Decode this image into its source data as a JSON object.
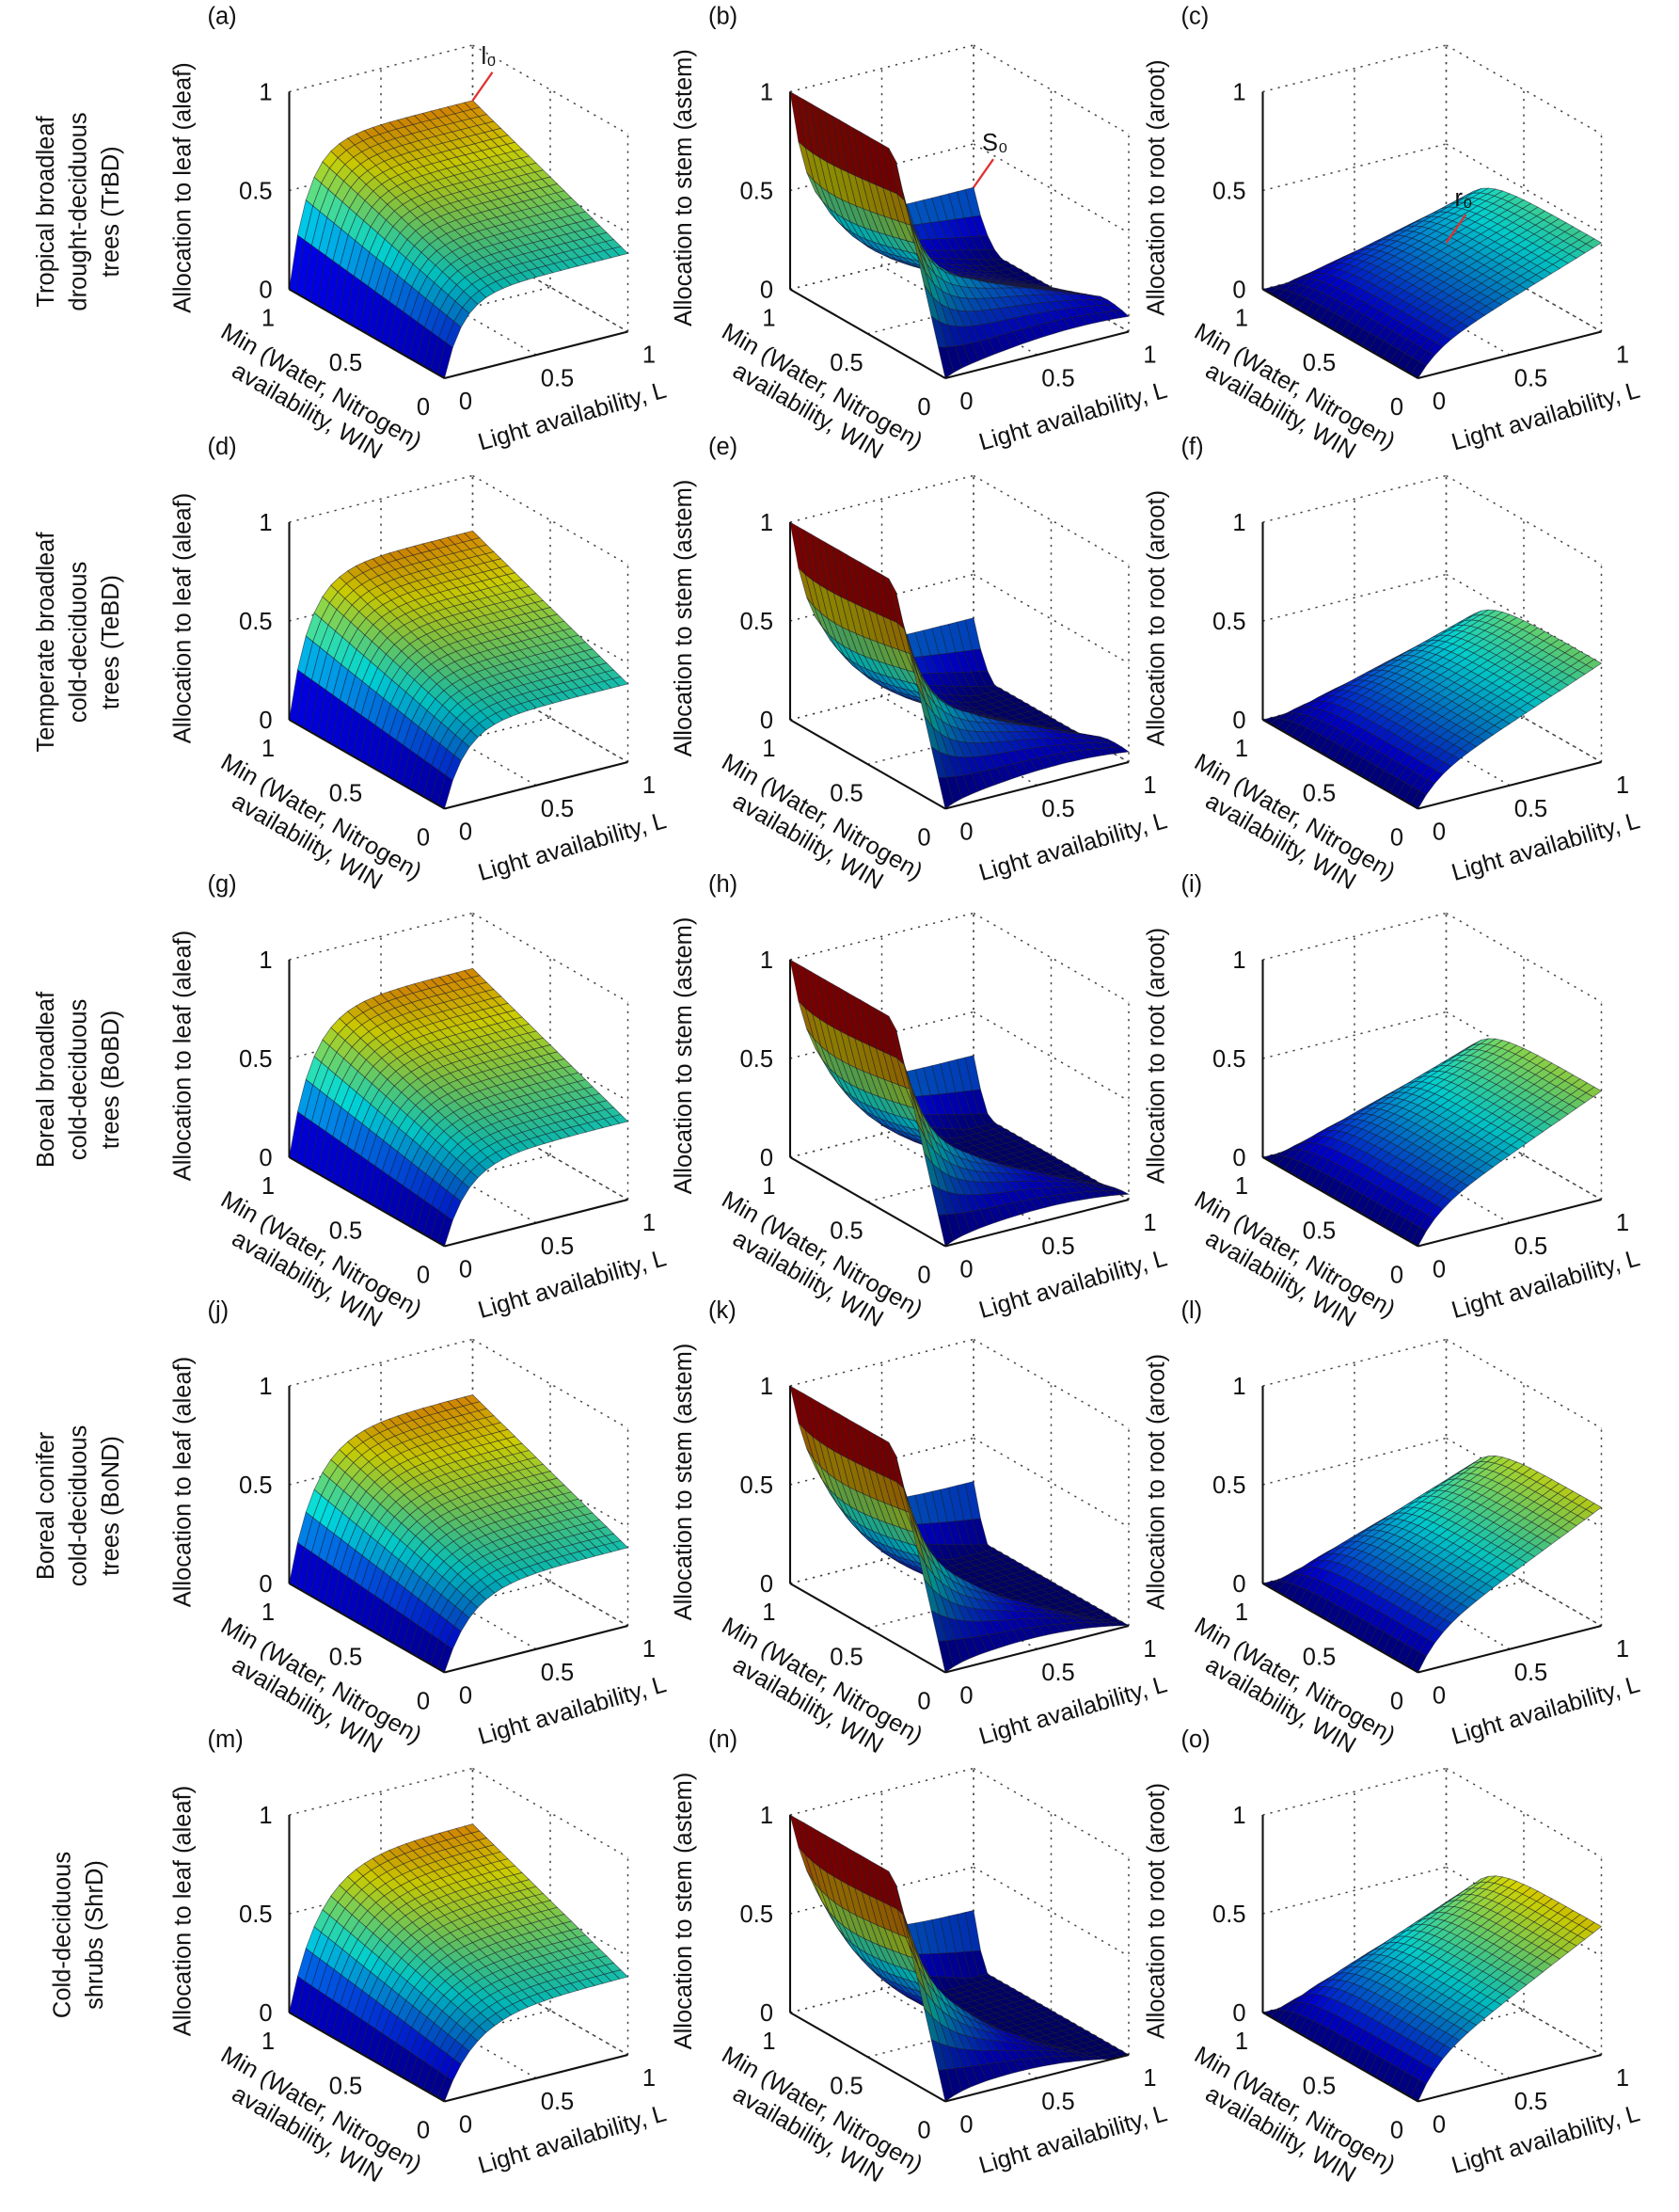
{
  "axes": {
    "xlabel": "Light availability, L",
    "ylabel": [
      "Min (Water, Nitrogen)",
      "availability, WIN"
    ],
    "xticks": [
      0,
      0.5,
      1
    ],
    "yticks": [
      0,
      0.5,
      1
    ],
    "zticks": [
      0,
      0.5,
      1
    ]
  },
  "rows": [
    {
      "label": [
        "Tropical broadleaf",
        "drought-deciduous",
        "trees (TrBD)"
      ],
      "panels": [
        {
          "tag": "(a)",
          "zlabel": "Allocation to leaf (aleaf)",
          "annotation": "l₀"
        },
        {
          "tag": "(b)",
          "zlabel": "Allocation to stem (astem)",
          "annotation": "S₀"
        },
        {
          "tag": "(c)",
          "zlabel": "Allocation to root (aroot)",
          "annotation": "r₀"
        }
      ]
    },
    {
      "label": [
        "Temperate broadleaf",
        "cold-deciduous",
        "trees (TeBD)"
      ],
      "panels": [
        {
          "tag": "(d)",
          "zlabel": "Allocation to leaf (aleaf)"
        },
        {
          "tag": "(e)",
          "zlabel": "Allocation to stem (astem)"
        },
        {
          "tag": "(f)",
          "zlabel": "Allocation to root (aroot)"
        }
      ]
    },
    {
      "label": [
        "Boreal broadleaf",
        "cold-deciduous",
        "trees (BoBD)"
      ],
      "panels": [
        {
          "tag": "(g)",
          "zlabel": "Allocation to leaf (aleaf)"
        },
        {
          "tag": "(h)",
          "zlabel": "Allocation to stem (astem)"
        },
        {
          "tag": "(i)",
          "zlabel": "Allocation to root (aroot)"
        }
      ]
    },
    {
      "label": [
        "Boreal conifer",
        "cold-deciduous",
        "trees (BoND)"
      ],
      "panels": [
        {
          "tag": "(j)",
          "zlabel": "Allocation to leaf (aleaf)"
        },
        {
          "tag": "(k)",
          "zlabel": "Allocation to stem (astem)"
        },
        {
          "tag": "(l)",
          "zlabel": "Allocation to root (aroot)"
        }
      ]
    },
    {
      "label": [
        "Cold-deciduous",
        "shrubs (ShrD)"
      ],
      "panels": [
        {
          "tag": "(m)",
          "zlabel": "Allocation to leaf (aleaf)"
        },
        {
          "tag": "(n)",
          "zlabel": "Allocation to stem (astem)"
        },
        {
          "tag": "(o)",
          "zlabel": "Allocation to root (aroot)"
        }
      ]
    }
  ]
}
